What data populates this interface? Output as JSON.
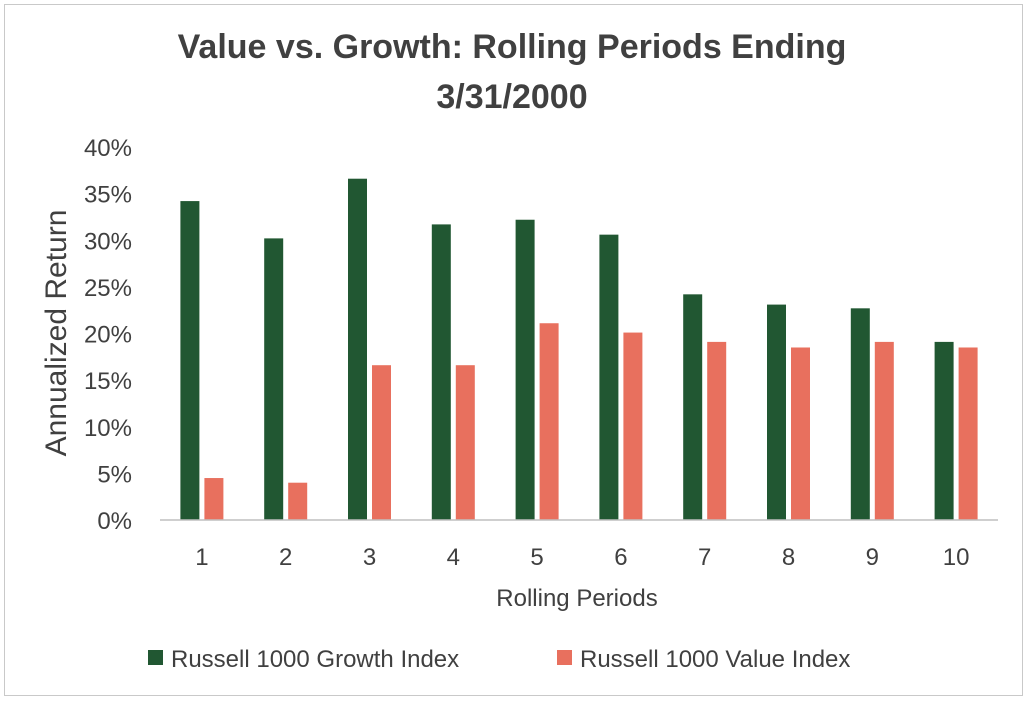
{
  "chart_data": {
    "type": "bar",
    "title_lines": [
      "Value vs. Growth: Rolling Periods Ending",
      "3/31/2000"
    ],
    "xlabel": "Rolling Periods",
    "ylabel": "Annualized Return",
    "categories": [
      "1",
      "2",
      "3",
      "4",
      "5",
      "6",
      "7",
      "8",
      "9",
      "10"
    ],
    "ylim": [
      0,
      40
    ],
    "y_ticks": [
      {
        "value": 0,
        "label": "0%"
      },
      {
        "value": 5,
        "label": "5%"
      },
      {
        "value": 10,
        "label": "10%"
      },
      {
        "value": 15,
        "label": "15%"
      },
      {
        "value": 20,
        "label": "20%"
      },
      {
        "value": 25,
        "label": "25%"
      },
      {
        "value": 30,
        "label": "30%"
      },
      {
        "value": 35,
        "label": "35%"
      },
      {
        "value": 40,
        "label": "40%"
      }
    ],
    "grid": false,
    "legend_position": "bottom",
    "series": [
      {
        "name": "Russell 1000 Growth Index",
        "color": "#215732",
        "values": [
          34.2,
          30.2,
          36.6,
          31.7,
          32.2,
          30.6,
          24.2,
          23.1,
          22.7,
          19.1
        ]
      },
      {
        "name": "Russell 1000 Value Index",
        "color": "#e8705e",
        "values": [
          4.5,
          4.0,
          16.6,
          16.6,
          21.1,
          20.1,
          19.1,
          18.5,
          19.1,
          18.5
        ]
      }
    ]
  }
}
